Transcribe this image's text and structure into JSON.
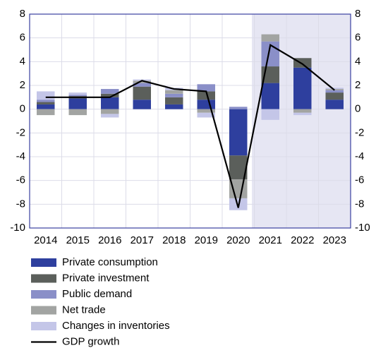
{
  "chart_data": {
    "type": "stacked_bar_line",
    "categories": [
      "2014",
      "2015",
      "2016",
      "2017",
      "2018",
      "2019",
      "2020",
      "2021",
      "2022",
      "2023"
    ],
    "series": [
      {
        "name": "Private consumption",
        "color": "#2e3f9e",
        "values": [
          0.4,
          0.9,
          1.0,
          0.8,
          0.4,
          0.8,
          -3.9,
          2.2,
          3.5,
          0.8
        ]
      },
      {
        "name": "Private investment",
        "color": "#5b5f5b",
        "values": [
          0.2,
          0.2,
          0.3,
          1.1,
          0.6,
          0.7,
          -2.0,
          1.4,
          0.8,
          0.6
        ]
      },
      {
        "name": "Public demand",
        "color": "#8a8fc8",
        "values": [
          0.2,
          0.1,
          0.4,
          0.3,
          0.3,
          0.6,
          0.2,
          2.1,
          0.0,
          0.2
        ]
      },
      {
        "name": "Net trade",
        "color": "#a2a4a2",
        "values": [
          -0.5,
          -0.5,
          -0.4,
          0.2,
          0.3,
          -0.3,
          -1.6,
          0.6,
          -0.3,
          0.1
        ]
      },
      {
        "name": "Changes in inventories",
        "color": "#c4c6e8",
        "values": [
          0.7,
          0.2,
          -0.3,
          0.1,
          0.2,
          -0.4,
          -1.0,
          -0.9,
          -0.2,
          0.1
        ]
      },
      {
        "name": "GDP growth",
        "color": "#000000",
        "type": "line",
        "values": [
          1.0,
          1.0,
          1.0,
          2.4,
          1.7,
          1.5,
          -8.3,
          5.4,
          3.8,
          1.6
        ]
      }
    ],
    "ylim": [
      -10,
      8
    ],
    "yticks": [
      -10,
      -8,
      -6,
      -4,
      -2,
      0,
      2,
      4,
      6,
      8
    ],
    "grid": true
  }
}
